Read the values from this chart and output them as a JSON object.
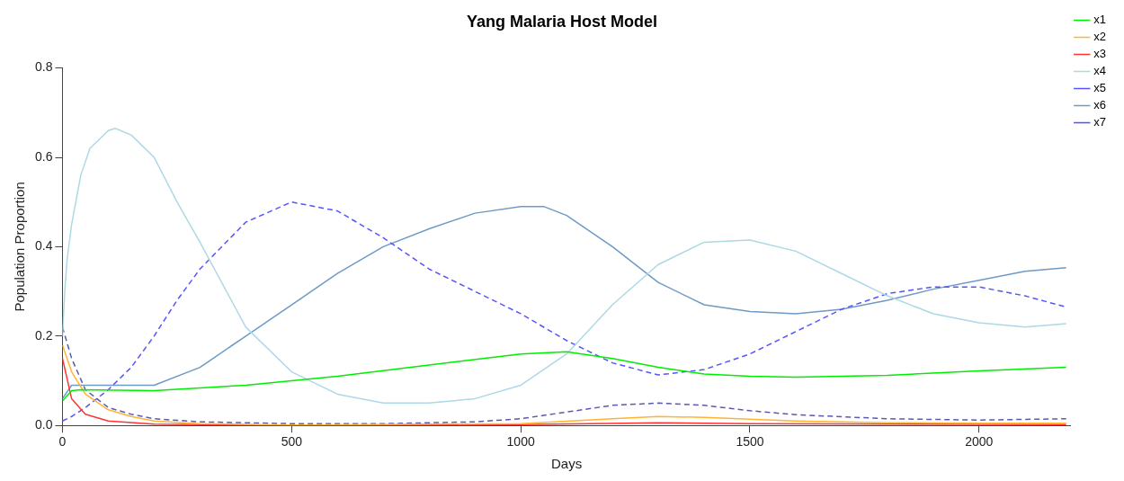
{
  "chart_data": {
    "type": "line",
    "title": "Yang Malaria Host Model",
    "xlabel": "Days",
    "ylabel": "Population Proportion",
    "xlim": [
      0,
      2200
    ],
    "xticks": [
      0,
      500,
      1000,
      1500,
      2000
    ],
    "ylim": [
      0,
      0.8
    ],
    "yticks": [
      {
        "value": 0,
        "label": "0.0"
      },
      0.2,
      0.4,
      0.6,
      0.8
    ],
    "grid": false,
    "legend": "top right",
    "marker": "none",
    "series": [
      {
        "name": "x1",
        "color": "#00ee00",
        "line_style": "solid",
        "x": [
          0,
          20,
          40,
          200,
          400,
          600,
          800,
          1000,
          1100,
          1200,
          1300,
          1400,
          1500,
          1600,
          1800,
          2000,
          2190
        ],
        "values": [
          0.055,
          0.078,
          0.08,
          0.078,
          0.09,
          0.11,
          0.135,
          0.16,
          0.165,
          0.15,
          0.13,
          0.115,
          0.11,
          0.108,
          0.112,
          0.122,
          0.13
        ]
      },
      {
        "name": "x2",
        "color": "#ffb433",
        "line_style": "solid",
        "x": [
          0,
          20,
          50,
          100,
          150,
          200,
          300,
          500,
          1000,
          1200,
          1300,
          1400,
          1600,
          1800,
          2000,
          2190
        ],
        "values": [
          0.18,
          0.12,
          0.07,
          0.035,
          0.02,
          0.01,
          0.004,
          0.001,
          0.004,
          0.015,
          0.02,
          0.018,
          0.01,
          0.006,
          0.005,
          0.005
        ]
      },
      {
        "name": "x3",
        "color": "#ff3333",
        "line_style": "solid",
        "x": [
          0,
          20,
          50,
          100,
          200,
          500,
          1000,
          1300,
          1500,
          2190
        ],
        "values": [
          0.15,
          0.06,
          0.025,
          0.01,
          0.003,
          0,
          0.002,
          0.006,
          0.004,
          0.002
        ]
      },
      {
        "name": "x4",
        "color": "#add8e6",
        "line_style": "solid",
        "x": [
          0,
          5,
          10,
          20,
          40,
          60,
          100,
          115,
          150,
          200,
          250,
          300,
          400,
          500,
          600,
          700,
          800,
          900,
          1000,
          1100,
          1200,
          1300,
          1400,
          1500,
          1600,
          1700,
          1800,
          1900,
          2000,
          2100,
          2190
        ],
        "values": [
          0.2,
          0.3,
          0.37,
          0.45,
          0.56,
          0.62,
          0.66,
          0.665,
          0.65,
          0.6,
          0.5,
          0.41,
          0.22,
          0.12,
          0.07,
          0.05,
          0.05,
          0.06,
          0.09,
          0.16,
          0.27,
          0.36,
          0.41,
          0.415,
          0.39,
          0.34,
          0.29,
          0.25,
          0.23,
          0.22,
          0.228
        ]
      },
      {
        "name": "x5",
        "color": "#5555ff",
        "line_style": "dashed",
        "x": [
          0,
          20,
          50,
          100,
          150,
          200,
          250,
          300,
          400,
          500,
          600,
          700,
          800,
          900,
          1000,
          1100,
          1200,
          1300,
          1400,
          1500,
          1600,
          1700,
          1800,
          1900,
          2000,
          2100,
          2190
        ],
        "values": [
          0.01,
          0.02,
          0.04,
          0.08,
          0.13,
          0.2,
          0.28,
          0.35,
          0.455,
          0.5,
          0.48,
          0.42,
          0.35,
          0.3,
          0.25,
          0.19,
          0.14,
          0.113,
          0.125,
          0.16,
          0.21,
          0.26,
          0.295,
          0.31,
          0.31,
          0.29,
          0.265
        ]
      },
      {
        "name": "x6",
        "color": "#6e9ac4",
        "line_style": "solid",
        "x": [
          0,
          20,
          200,
          300,
          400,
          500,
          600,
          700,
          800,
          900,
          1000,
          1050,
          1100,
          1200,
          1300,
          1400,
          1500,
          1600,
          1700,
          1800,
          1900,
          2000,
          2100,
          2190
        ],
        "values": [
          0.06,
          0.09,
          0.09,
          0.13,
          0.2,
          0.27,
          0.34,
          0.4,
          0.44,
          0.475,
          0.49,
          0.49,
          0.47,
          0.4,
          0.32,
          0.27,
          0.255,
          0.25,
          0.26,
          0.28,
          0.305,
          0.325,
          0.345,
          0.353
        ]
      },
      {
        "name": "x7",
        "color": "#5a5ab4",
        "line_style": "dashed",
        "x": [
          0,
          20,
          50,
          100,
          150,
          200,
          300,
          500,
          700,
          900,
          1000,
          1100,
          1200,
          1300,
          1400,
          1500,
          1600,
          1800,
          2000,
          2190
        ],
        "values": [
          0.22,
          0.15,
          0.08,
          0.04,
          0.025,
          0.015,
          0.008,
          0.004,
          0.004,
          0.008,
          0.015,
          0.03,
          0.045,
          0.05,
          0.045,
          0.033,
          0.024,
          0.015,
          0.012,
          0.015
        ]
      }
    ]
  }
}
